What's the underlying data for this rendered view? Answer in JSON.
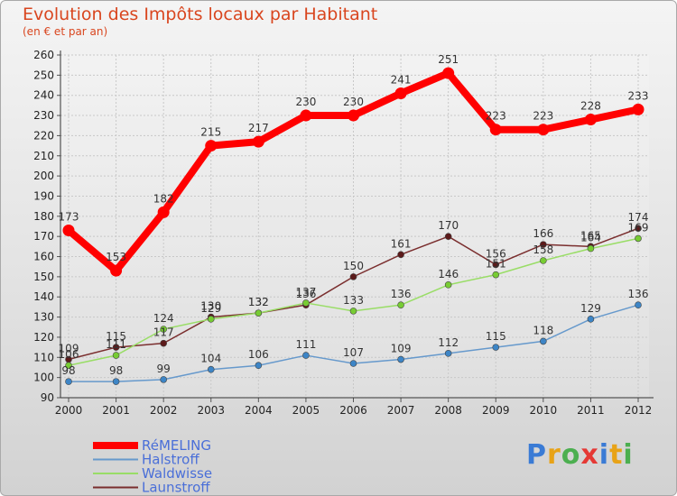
{
  "chart_data": {
    "type": "line",
    "title": "Evolution des Impôts locaux par Habitant",
    "subtitle": "(en € et par an)",
    "xlabel": "",
    "ylabel": "",
    "categories": [
      "2000",
      "2001",
      "2002",
      "2003",
      "2004",
      "2005",
      "2006",
      "2007",
      "2008",
      "2009",
      "2010",
      "2011",
      "2012"
    ],
    "ylim": [
      90,
      260
    ],
    "yticks": [
      "90",
      "100",
      "110",
      "120",
      "130",
      "140",
      "150",
      "160",
      "170",
      "180",
      "190",
      "200",
      "210",
      "220",
      "230",
      "240",
      "250",
      "260"
    ],
    "grid": true,
    "series": [
      {
        "name": "RéMELING",
        "color": "#ff0000",
        "marker": "#ff0000",
        "values": [
          173,
          153,
          182,
          215,
          217,
          230,
          230,
          241,
          251,
          223,
          223,
          228,
          233
        ],
        "labels": [
          "173",
          "153",
          "182",
          "215",
          "217",
          "230",
          "230",
          "241",
          "251",
          "223",
          "223",
          "228",
          "233"
        ]
      },
      {
        "name": "Halstroff",
        "color": "#6699cc",
        "marker": "#3d85c6",
        "values": [
          98,
          98,
          99,
          104,
          106,
          111,
          107,
          109,
          112,
          115,
          118,
          129,
          136
        ],
        "labels": [
          "98",
          "98",
          "99",
          "104",
          "106",
          "111",
          "107",
          "109",
          "112",
          "115",
          "118",
          "129",
          "136"
        ]
      },
      {
        "name": "Waldwisse",
        "color": "#99dd66",
        "marker": "#77cc33",
        "values": [
          106,
          111,
          124,
          129,
          132,
          137,
          133,
          136,
          146,
          151,
          158,
          164,
          169
        ],
        "labels": [
          "106",
          "111",
          "124",
          "129",
          "132",
          "137",
          "133",
          "136",
          "146",
          "151",
          "158",
          "164",
          "169"
        ]
      },
      {
        "name": "Launstroff",
        "color": "#7a2e2e",
        "marker": "#5c1a1a",
        "values": [
          109,
          115,
          117,
          130,
          132,
          136,
          150,
          161,
          170,
          156,
          166,
          165,
          174
        ],
        "labels": [
          "109",
          "115",
          "117",
          "130",
          "132",
          "136",
          "150",
          "161",
          "170",
          "156",
          "166",
          "165",
          "174"
        ]
      }
    ],
    "legend_position": "bottom-left"
  },
  "logo": {
    "text": "Proxiti"
  },
  "colors": {
    "title": "#d9461f",
    "legend_text": "#4a6fd8"
  }
}
